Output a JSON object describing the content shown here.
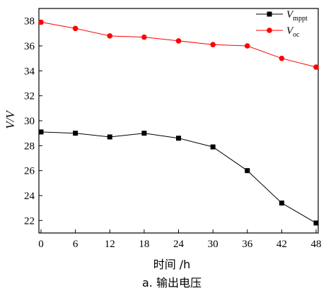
{
  "chart_data": {
    "type": "line",
    "x": [
      0,
      6,
      12,
      18,
      24,
      30,
      36,
      42,
      48
    ],
    "xticks": [
      "0",
      "6",
      "12",
      "18",
      "24",
      "30",
      "36",
      "42",
      "48"
    ],
    "xlim": [
      0,
      48
    ],
    "yticks": [
      "22",
      "24",
      "26",
      "28",
      "30",
      "32",
      "34",
      "36",
      "38"
    ],
    "ylim": [
      21,
      39
    ],
    "xlabel": "时间 /h",
    "ylabel": "V/V",
    "caption": "a. 输出电压",
    "grid": false,
    "legend_position": "top-right",
    "series": [
      {
        "name_main": "V",
        "name_sub": "mppt",
        "color": "#000000",
        "marker": "square",
        "values": [
          29.1,
          29.0,
          28.7,
          29.0,
          28.6,
          27.9,
          26.0,
          23.4,
          21.8
        ]
      },
      {
        "name_main": "V",
        "name_sub": "oc",
        "color": "#ff0000",
        "marker": "circle",
        "values": [
          37.9,
          37.4,
          36.8,
          36.7,
          36.4,
          36.1,
          36.0,
          35.0,
          34.3
        ]
      }
    ]
  }
}
